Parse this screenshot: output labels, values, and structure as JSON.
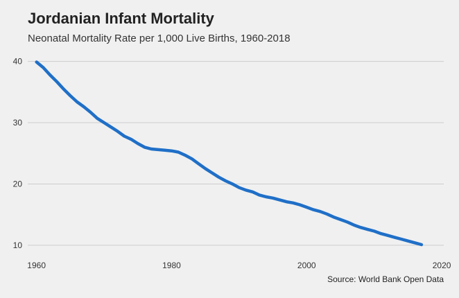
{
  "title": "Jordanian Infant Mortality",
  "subtitle": "Neonatal Mortality Rate per 1,000 Live Births, 1960-2018",
  "source": "Source: World Bank Open Data",
  "colors": {
    "background": "#f0f0f0",
    "line": "#1f6fc7",
    "grid": "#cccccc"
  },
  "chart_data": {
    "type": "line",
    "title": "Jordanian Infant Mortality",
    "subtitle": "Neonatal Mortality Rate per 1,000 Live Births, 1960-2018",
    "xlabel": "",
    "ylabel": "",
    "xlim": [
      1958.7,
      2020.3
    ],
    "ylim": [
      8.4,
      41.2
    ],
    "xticks": [
      1960,
      1980,
      2000,
      2020
    ],
    "yticks": [
      10,
      20,
      30,
      40
    ],
    "grid": "horizontal",
    "legend": "none",
    "series": [
      {
        "x": [
          1960,
          1961,
          1962,
          1963,
          1964,
          1965,
          1966,
          1967,
          1968,
          1969,
          1970,
          1971,
          1972,
          1973,
          1974,
          1975,
          1976,
          1977,
          1978,
          1979,
          1980,
          1981,
          1982,
          1983,
          1984,
          1985,
          1986,
          1987,
          1988,
          1989,
          1990,
          1991,
          1992,
          1993,
          1994,
          1995,
          1996,
          1997,
          1998,
          1999,
          2000,
          2001,
          2002,
          2003,
          2004,
          2005,
          2006,
          2007,
          2008,
          2009,
          2010,
          2011,
          2012,
          2013,
          2014,
          2015,
          2016,
          2017
        ],
        "values": [
          39.9,
          39.0,
          37.8,
          36.7,
          35.5,
          34.4,
          33.4,
          32.6,
          31.7,
          30.7,
          30.0,
          29.3,
          28.6,
          27.8,
          27.3,
          26.6,
          26.0,
          25.7,
          25.6,
          25.5,
          25.4,
          25.2,
          24.7,
          24.1,
          23.3,
          22.5,
          21.8,
          21.1,
          20.5,
          20.0,
          19.4,
          19.0,
          18.7,
          18.2,
          17.9,
          17.7,
          17.4,
          17.1,
          16.9,
          16.6,
          16.2,
          15.8,
          15.5,
          15.1,
          14.6,
          14.2,
          13.8,
          13.3,
          12.9,
          12.6,
          12.3,
          11.9,
          11.6,
          11.3,
          11.0,
          10.7,
          10.4,
          10.1
        ]
      }
    ]
  }
}
